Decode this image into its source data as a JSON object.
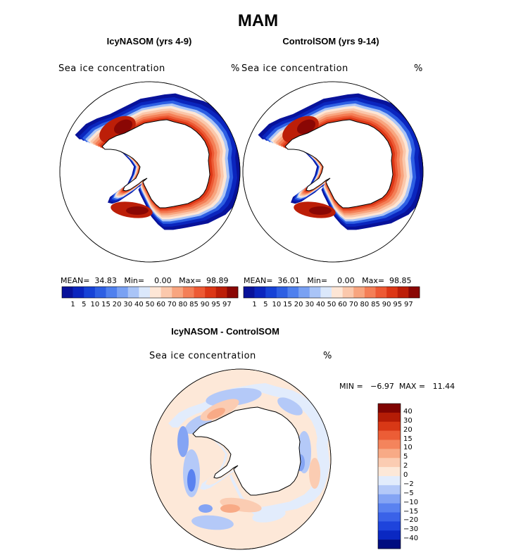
{
  "title": "MAM",
  "palette": {
    "seq": [
      "#08129a",
      "#0a25be",
      "#1642d6",
      "#2d5fe3",
      "#4f80ee",
      "#79a1f3",
      "#a9c4f7",
      "#dbe8fb",
      "#fde6d6",
      "#fbc8ac",
      "#f8a57f",
      "#f47f57",
      "#ed5a34",
      "#dc3716",
      "#bc1e08",
      "#8a0704"
    ],
    "diff": [
      "#000c80",
      "#0a28c2",
      "#1e44dc",
      "#3a62e8",
      "#5a82f0",
      "#84a4f4",
      "#b4c9f8",
      "#e2ecfc",
      "#fde8d8",
      "#fbccb2",
      "#f8aa86",
      "#f4845c",
      "#ec5d36",
      "#d83816",
      "#b41c06",
      "#800402"
    ],
    "land": "#ffffff",
    "coast": "#000000"
  },
  "panels": [
    {
      "title": "IcyNASOM (yrs 4-9)",
      "variable": "Sea ice concentration",
      "unit": "%",
      "stats": "MEAN=  34.83   Min=    0.00   Max=  98.89",
      "colorbar_ticks": [
        "1",
        "5",
        "10",
        "15",
        "20",
        "30",
        "40",
        "50",
        "60",
        "70",
        "80",
        "85",
        "90",
        "95",
        "97"
      ]
    },
    {
      "title": "ControlSOM (yrs 9-14)",
      "variable": "Sea ice concentration",
      "unit": "%",
      "stats": "MEAN=  36.01   Min=    0.00   Max=  98.85",
      "colorbar_ticks": [
        "1",
        "5",
        "10",
        "15",
        "20",
        "30",
        "40",
        "50",
        "60",
        "70",
        "80",
        "85",
        "90",
        "95",
        "97"
      ]
    }
  ],
  "difference": {
    "title": "IcyNASOM - ControlSOM",
    "variable": "Sea ice concentration",
    "unit": "%",
    "minmax": "MIN =   −6.97  MAX =   11.44",
    "colorbar_ticks": [
      "40",
      "30",
      "20",
      "15",
      "10",
      "5",
      "2",
      "0",
      "−2",
      "−5",
      "−10",
      "−15",
      "−20",
      "−30",
      "−40"
    ]
  }
}
